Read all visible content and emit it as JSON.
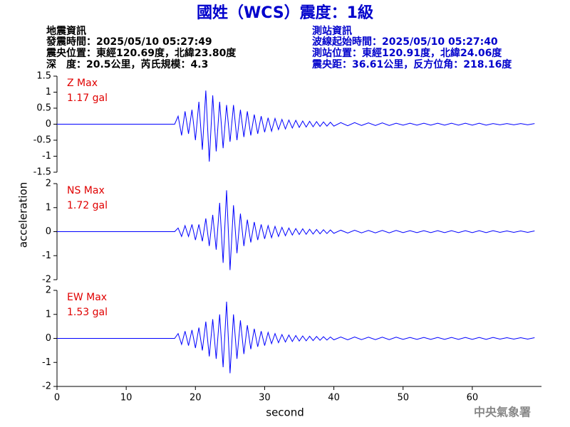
{
  "header": {
    "title": "國姓（WCS）震度：1級",
    "left": [
      "地震資訊",
      "發震時間：2025/05/10 05:27:49",
      "震央位置：東經120.69度，北緯23.80度",
      "深　度：20.5公里，芮氏規模：4.3"
    ],
    "right": [
      "測站資訊",
      "波線起始時間：2025/05/10 05:27:40",
      "測站位置：東經120.91度，北緯24.06度",
      "震央距：36.61公里，反方位角：218.16度"
    ]
  },
  "ylabel": "acceleration",
  "xlabel": "second",
  "footer": "中央氣象署",
  "chart_data": [
    {
      "type": "line",
      "annotation": [
        "Z Max",
        "1.17 gal"
      ],
      "color": "#0000ff",
      "xlim": [
        0,
        70
      ],
      "ylim": [
        -1.5,
        1.5
      ],
      "yticks": [
        -1.5,
        -1,
        -0.5,
        0,
        0.5,
        1,
        1.5
      ],
      "x": [
        0,
        17,
        17.5,
        18,
        18.5,
        19,
        19.5,
        20,
        20.5,
        21,
        21.5,
        22,
        22.5,
        23,
        23.5,
        24,
        24.5,
        25,
        25.5,
        26,
        26.5,
        27,
        27.5,
        28,
        28.5,
        29,
        29.5,
        30,
        30.5,
        31,
        31.5,
        32,
        32.5,
        33,
        33.5,
        34,
        34.5,
        35,
        35.5,
        36,
        36.5,
        37,
        37.5,
        38,
        38.5,
        39,
        39.5,
        40,
        41,
        42,
        43,
        44,
        45,
        46,
        47,
        48,
        49,
        50,
        51,
        52,
        53,
        54,
        55,
        56,
        57,
        58,
        59,
        60,
        61,
        62,
        63,
        64,
        65,
        66,
        67,
        68,
        69
      ],
      "values": [
        0,
        0,
        0.25,
        -0.35,
        0.4,
        -0.3,
        0.45,
        -0.5,
        0.7,
        -0.8,
        1.05,
        -1.17,
        0.9,
        -0.85,
        0.7,
        -0.75,
        0.6,
        -0.55,
        0.6,
        -0.5,
        0.45,
        -0.4,
        0.4,
        -0.35,
        0.3,
        -0.3,
        0.25,
        -0.25,
        0.2,
        -0.22,
        0.18,
        -0.17,
        0.15,
        -0.15,
        0.13,
        -0.12,
        0.12,
        -0.1,
        0.1,
        -0.09,
        0.09,
        -0.08,
        0.08,
        -0.07,
        0.07,
        -0.06,
        0.06,
        -0.06,
        0.05,
        -0.05,
        0.05,
        -0.04,
        0.04,
        -0.04,
        0.04,
        -0.04,
        0.03,
        -0.03,
        0.03,
        -0.03,
        0.03,
        -0.03,
        0.03,
        -0.03,
        0.03,
        -0.03,
        0.03,
        -0.03,
        0.03,
        -0.03,
        0.02,
        -0.02,
        0.02,
        -0.02,
        0.02,
        -0.02,
        0.02
      ]
    },
    {
      "type": "line",
      "annotation": [
        "NS Max",
        "1.72 gal"
      ],
      "color": "#0000ff",
      "xlim": [
        0,
        70
      ],
      "ylim": [
        -2,
        2
      ],
      "yticks": [
        -2,
        -1,
        0,
        1,
        2
      ],
      "x": [
        0,
        17,
        17.5,
        18,
        18.5,
        19,
        19.5,
        20,
        20.5,
        21,
        21.5,
        22,
        22.5,
        23,
        23.5,
        24,
        24.5,
        25,
        25.5,
        26,
        26.5,
        27,
        27.5,
        28,
        28.5,
        29,
        29.5,
        30,
        30.5,
        31,
        31.5,
        32,
        32.5,
        33,
        33.5,
        34,
        34.5,
        35,
        35.5,
        36,
        36.5,
        37,
        37.5,
        38,
        38.5,
        39,
        39.5,
        40,
        41,
        42,
        43,
        44,
        45,
        46,
        47,
        48,
        49,
        50,
        51,
        52,
        53,
        54,
        55,
        56,
        57,
        58,
        59,
        60,
        61,
        62,
        63,
        64,
        65,
        66,
        67,
        68,
        69
      ],
      "values": [
        0,
        0,
        0.15,
        -0.2,
        0.25,
        -0.2,
        0.3,
        -0.35,
        0.3,
        -0.4,
        0.55,
        -0.6,
        0.7,
        -0.75,
        1.2,
        -1.3,
        1.72,
        -1.6,
        1.1,
        -0.9,
        0.75,
        -0.6,
        0.5,
        -0.45,
        0.4,
        -0.35,
        0.3,
        -0.3,
        0.25,
        -0.25,
        0.22,
        -0.2,
        0.18,
        -0.17,
        0.15,
        -0.14,
        0.13,
        -0.12,
        0.12,
        -0.11,
        0.1,
        -0.1,
        0.09,
        -0.09,
        0.08,
        -0.08,
        0.07,
        -0.07,
        0.06,
        -0.06,
        0.06,
        -0.05,
        0.05,
        -0.05,
        0.05,
        -0.05,
        0.05,
        -0.04,
        0.04,
        -0.04,
        0.04,
        -0.04,
        0.04,
        -0.04,
        0.04,
        -0.04,
        0.04,
        -0.04,
        0.04,
        -0.04,
        0.04,
        -0.03,
        0.03,
        -0.03,
        0.03,
        -0.03,
        0.03
      ]
    },
    {
      "type": "line",
      "annotation": [
        "EW Max",
        "1.53 gal"
      ],
      "color": "#0000ff",
      "xlim": [
        0,
        70
      ],
      "ylim": [
        -2,
        2
      ],
      "yticks": [
        -2,
        -1,
        0,
        1,
        2
      ],
      "xticks": [
        0,
        10,
        20,
        30,
        40,
        50,
        60
      ],
      "x": [
        0,
        17,
        17.5,
        18,
        18.5,
        19,
        19.5,
        20,
        20.5,
        21,
        21.5,
        22,
        22.5,
        23,
        23.5,
        24,
        24.5,
        25,
        25.5,
        26,
        26.5,
        27,
        27.5,
        28,
        28.5,
        29,
        29.5,
        30,
        30.5,
        31,
        31.5,
        32,
        32.5,
        33,
        33.5,
        34,
        34.5,
        35,
        35.5,
        36,
        36.5,
        37,
        37.5,
        38,
        38.5,
        39,
        39.5,
        40,
        41,
        42,
        43,
        44,
        45,
        46,
        47,
        48,
        49,
        50,
        51,
        52,
        53,
        54,
        55,
        56,
        57,
        58,
        59,
        60,
        61,
        62,
        63,
        64,
        65,
        66,
        67,
        68,
        69
      ],
      "values": [
        0,
        0,
        0.2,
        -0.25,
        0.3,
        -0.3,
        0.35,
        -0.4,
        0.45,
        -0.5,
        0.7,
        -0.75,
        0.8,
        -0.85,
        1.0,
        -1.2,
        1.53,
        -1.45,
        1.0,
        -0.85,
        0.75,
        -0.65,
        0.55,
        -0.45,
        0.4,
        -0.35,
        0.3,
        -0.3,
        0.25,
        -0.22,
        0.2,
        -0.18,
        0.16,
        -0.15,
        0.14,
        -0.13,
        0.12,
        -0.11,
        0.1,
        -0.1,
        0.09,
        -0.09,
        0.08,
        -0.08,
        0.07,
        -0.07,
        0.06,
        -0.06,
        0.06,
        -0.06,
        0.06,
        -0.05,
        0.05,
        -0.05,
        0.05,
        -0.05,
        0.05,
        -0.04,
        0.04,
        -0.04,
        0.04,
        -0.04,
        0.04,
        -0.04,
        0.04,
        -0.04,
        0.04,
        -0.04,
        0.04,
        -0.04,
        0.04,
        -0.03,
        0.03,
        -0.03,
        0.03,
        -0.03,
        0.03
      ]
    }
  ]
}
